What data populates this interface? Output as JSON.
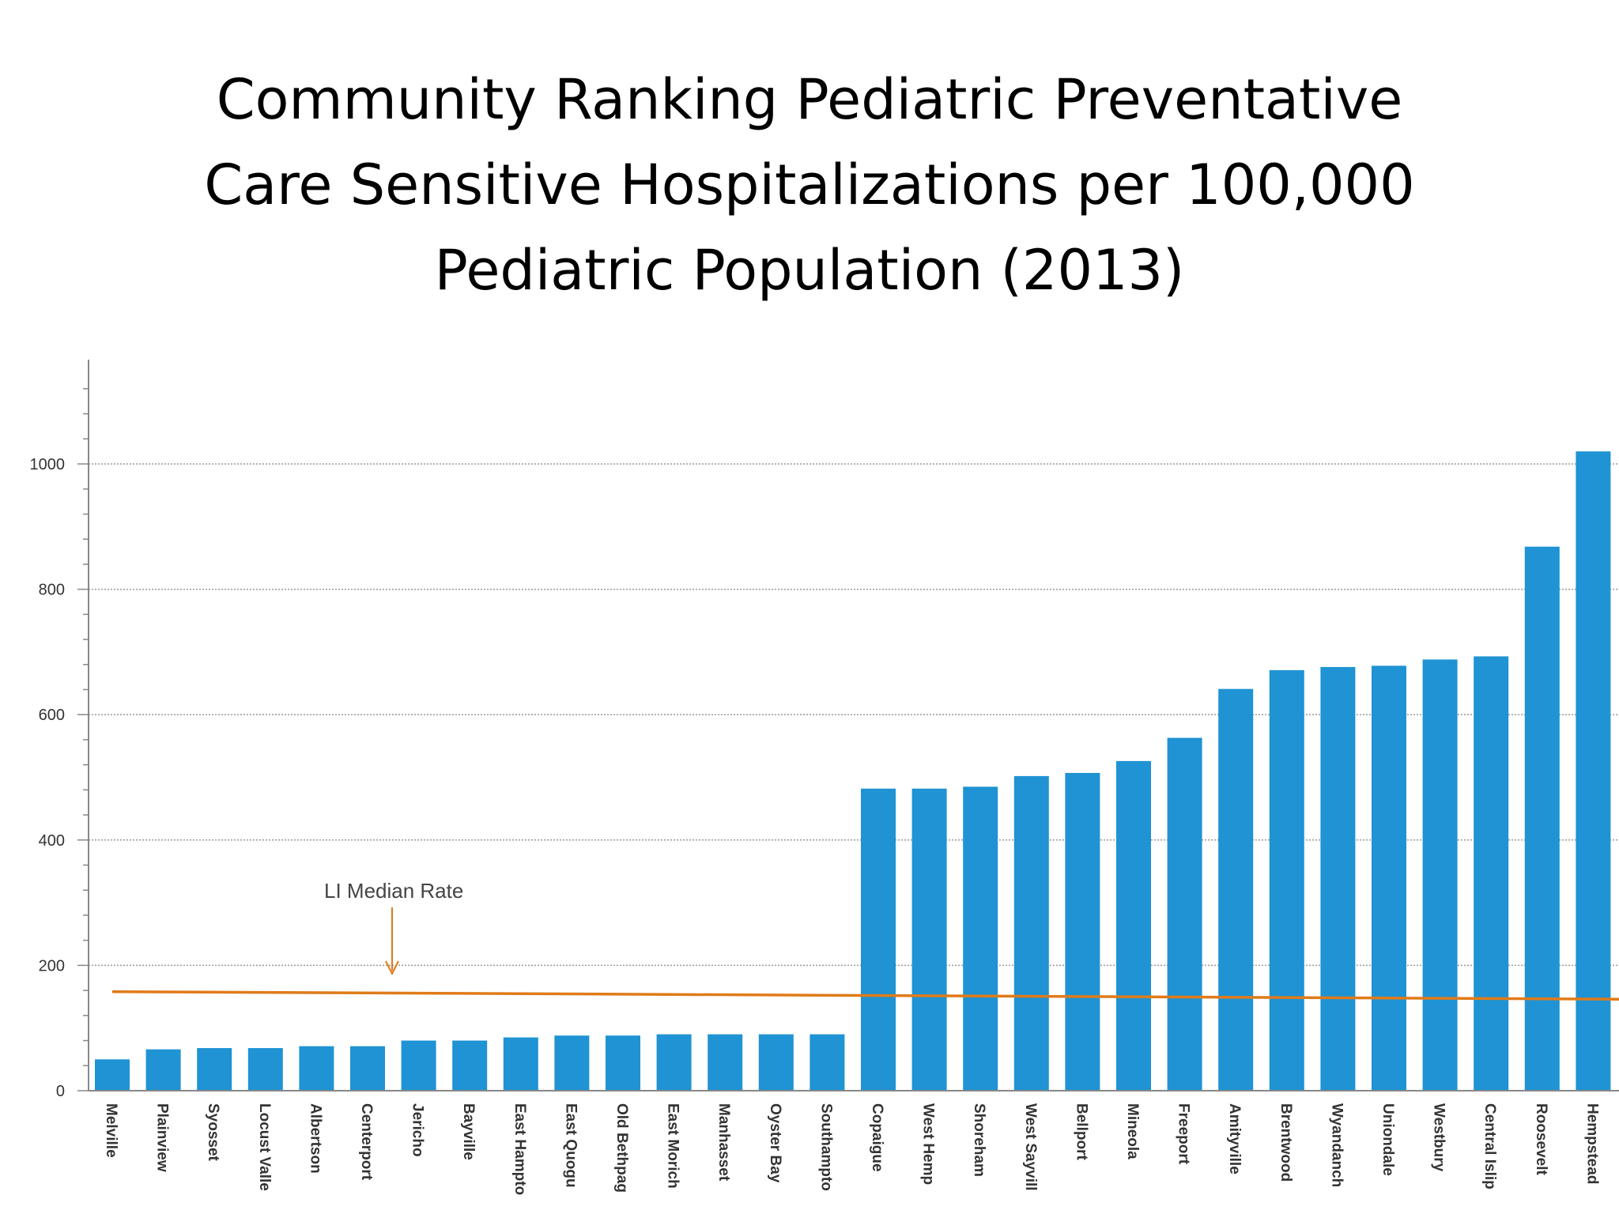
{
  "page": {
    "title_lines": [
      "Community Ranking Pediatric Preventative",
      "Care Sensitive Hospitalizations per 100,000",
      "Pediatric Population (2013)"
    ]
  },
  "chart_data": {
    "type": "bar",
    "title": "Community Ranking Pediatric Preventative Care Sensitive Hospitalizations per 100,000 Pediatric Population (2013)",
    "xlabel": "",
    "ylabel": "",
    "ylim": [
      0,
      1160
    ],
    "yticks": [
      0,
      200,
      400,
      600,
      800,
      1000
    ],
    "grid": true,
    "bar_color": "#1f93d3",
    "categories": [
      "Melville",
      "Plainview",
      "Syosset",
      "Locust Valle",
      "Albertson",
      "Centerport",
      "Jericho",
      "Bayville",
      "East Hampto",
      "East Quogu",
      "Old Bethpag",
      "East Morich",
      "Manhasset",
      "Oyster Bay",
      "Southampto",
      "Copaigue",
      "West Hemp",
      "Shoreham",
      "West Sayvill",
      "Bellport",
      "Mineola",
      "Freeport",
      "Amityville",
      "Brentwood",
      "Wyandanch",
      "Uniondale",
      "Westbury",
      "Central Islip",
      "Roosevelt",
      "Hempstead"
    ],
    "values": [
      50,
      66,
      68,
      68,
      71,
      71,
      80,
      80,
      85,
      88,
      88,
      90,
      90,
      90,
      90,
      482,
      482,
      485,
      502,
      507,
      526,
      563,
      641,
      671,
      676,
      678,
      688,
      693,
      868,
      1020
    ],
    "reference_line": {
      "label": "LI Median Rate",
      "value": 150,
      "color": "#e07b1a"
    }
  }
}
